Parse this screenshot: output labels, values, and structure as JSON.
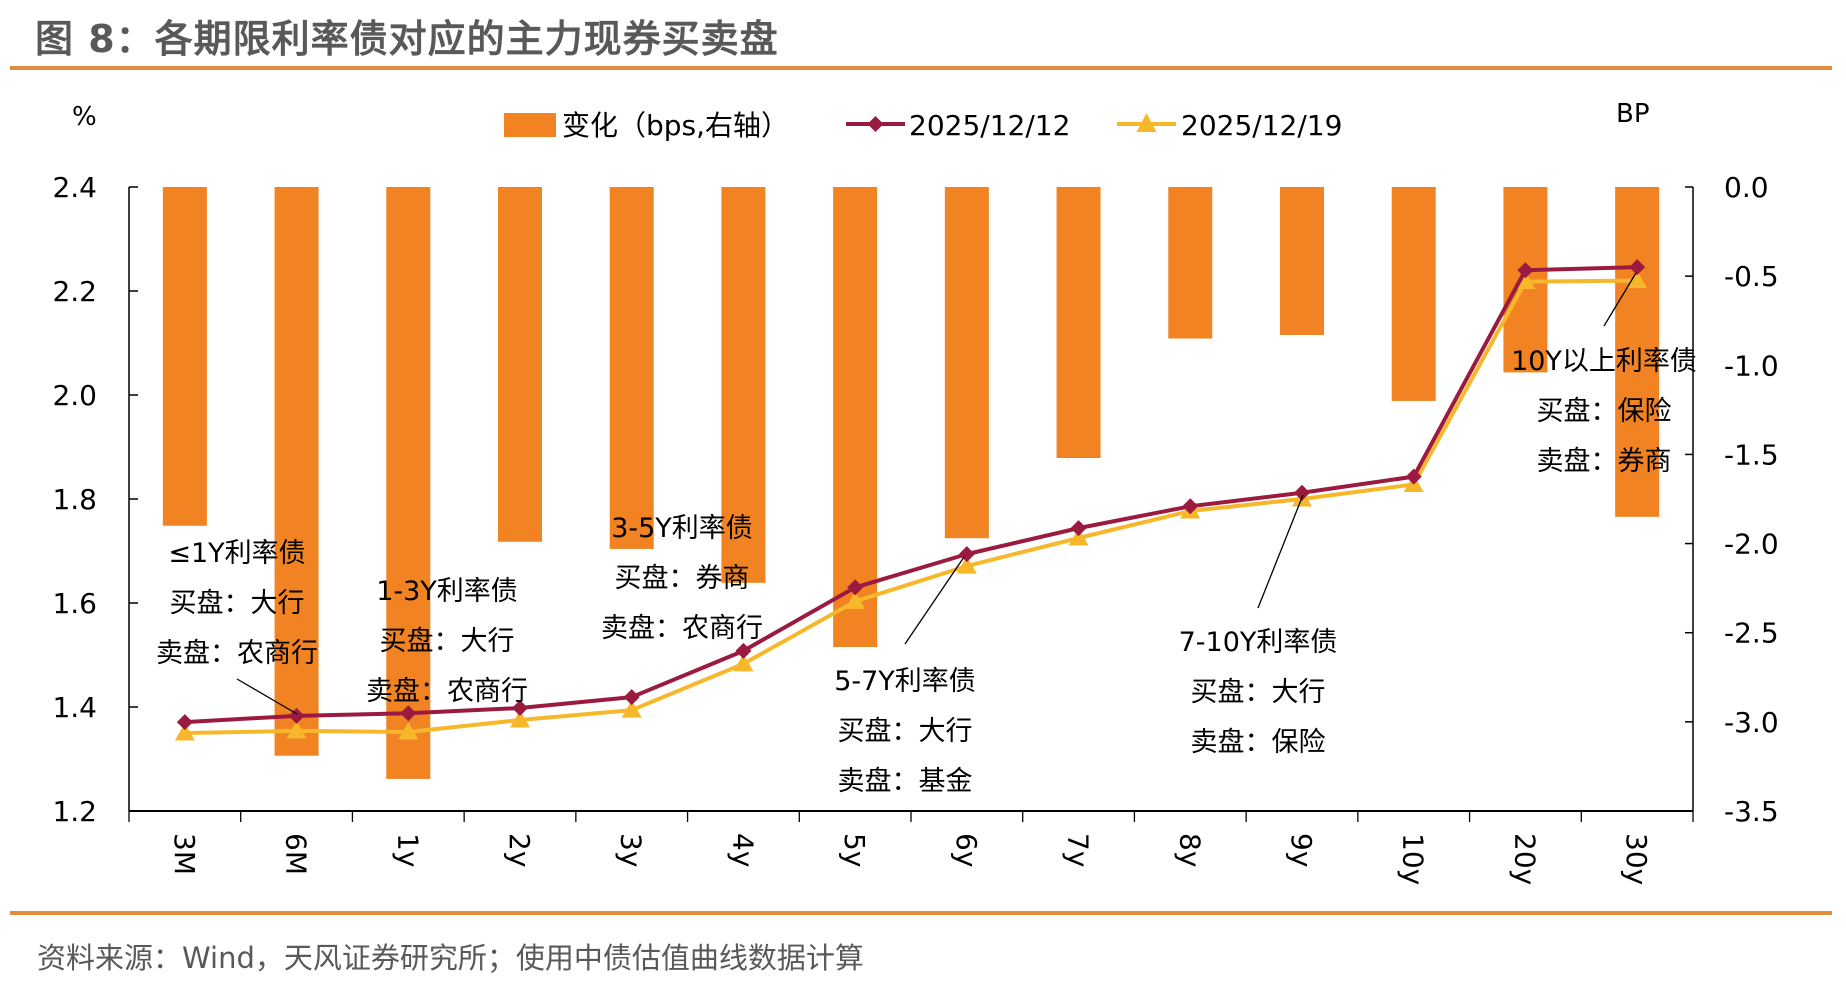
{
  "header": {
    "title": "图 8：各期限利率债对应的主力现券买卖盘"
  },
  "footer": {
    "source": "资料来源：Wind，天风证券研究所；使用中债估值曲线数据计算"
  },
  "colors": {
    "bar": "#F28322",
    "line_1212": "#9B1B40",
    "line_1219": "#F6B82A",
    "rule": "#E08C3A",
    "axis": "#000000"
  },
  "chart_data": {
    "type": "bar+line",
    "title": "各期限利率债对应的主力现券买卖盘",
    "categories": [
      "3M",
      "6M",
      "1y",
      "2y",
      "3y",
      "4y",
      "5y",
      "6y",
      "7y",
      "8y",
      "9y",
      "10y",
      "20y",
      "30y"
    ],
    "left_axis": {
      "unit": "%",
      "ylim": [
        1.2,
        2.4
      ],
      "ticks": [
        "1.2",
        "1.4",
        "1.6",
        "1.8",
        "2.0",
        "2.2",
        "2.4"
      ],
      "tick_values": [
        1.2,
        1.4,
        1.6,
        1.8,
        2.0,
        2.2,
        2.4
      ]
    },
    "right_axis": {
      "unit": "BP",
      "ylim": [
        -3.5,
        0.0
      ],
      "ticks": [
        "0.0",
        "-0.5",
        "-1.0",
        "-1.5",
        "-2.0",
        "-2.5",
        "-3.0",
        "-3.5"
      ],
      "tick_values": [
        0.0,
        -0.5,
        -1.0,
        -1.5,
        -2.0,
        -2.5,
        -3.0,
        -3.5
      ]
    },
    "series": [
      {
        "name": "变化（bps,右轴）",
        "type": "bar",
        "axis": "right",
        "values": [
          -1.9,
          -3.19,
          -3.32,
          -1.99,
          -2.03,
          -2.22,
          -2.58,
          -1.97,
          -1.52,
          -0.85,
          -0.83,
          -1.2,
          -1.04,
          -1.85
        ]
      },
      {
        "name": "2025/12/12",
        "type": "line",
        "marker": "diamond",
        "axis": "left",
        "values": [
          1.371,
          1.383,
          1.388,
          1.398,
          1.419,
          1.508,
          1.63,
          1.694,
          1.744,
          1.786,
          1.812,
          1.843,
          2.24,
          2.246
        ]
      },
      {
        "name": "2025/12/19",
        "type": "line",
        "marker": "triangle",
        "axis": "left",
        "values": [
          1.35,
          1.354,
          1.352,
          1.375,
          1.394,
          1.483,
          1.603,
          1.671,
          1.725,
          1.777,
          1.8,
          1.828,
          2.218,
          2.22
        ]
      }
    ],
    "legend": {
      "placement": "top-center"
    },
    "grid": false,
    "annotations": [
      {
        "lines": [
          "≤1Y利率债",
          "买盘：大行",
          "卖盘：农商行"
        ],
        "points_to": "6M"
      },
      {
        "lines": [
          "1-3Y利率债",
          "买盘：大行",
          "卖盘：农商行"
        ],
        "points_to": null
      },
      {
        "lines": [
          "3-5Y利率债",
          "买盘：券商",
          "卖盘：农商行"
        ],
        "points_to": null
      },
      {
        "lines": [
          "5-7Y利率债",
          "买盘：大行",
          "卖盘：基金"
        ],
        "points_to": "6y"
      },
      {
        "lines": [
          "7-10Y利率债",
          "买盘：大行",
          "卖盘：保险"
        ],
        "points_to": "9y"
      },
      {
        "lines": [
          "10Y以上利率债",
          "买盘：保险",
          "卖盘：券商"
        ],
        "points_to": "30y"
      }
    ]
  }
}
